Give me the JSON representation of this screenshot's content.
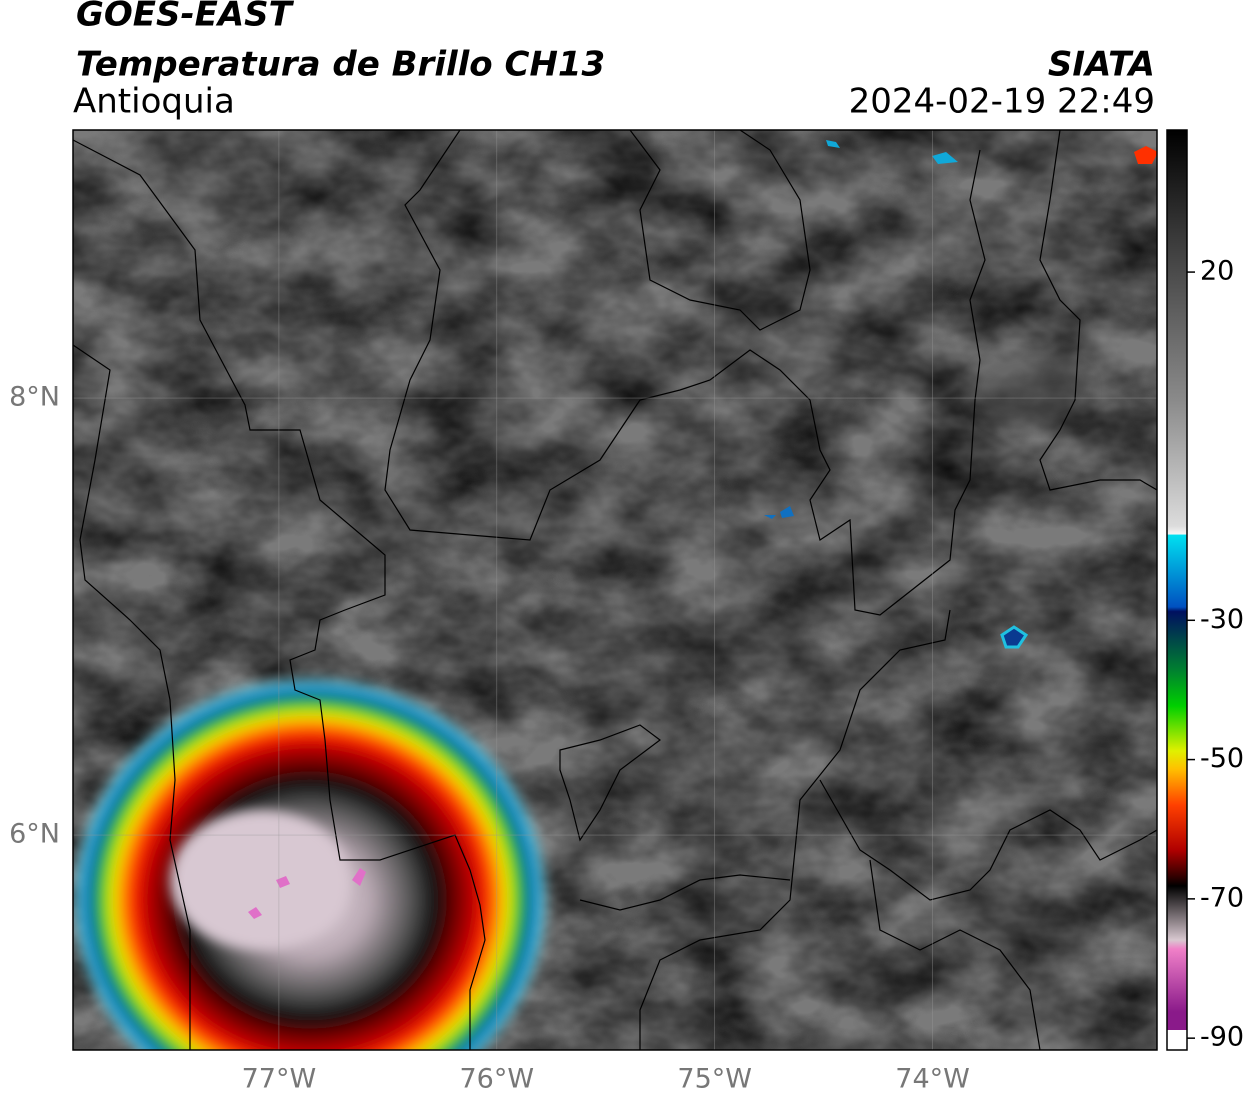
{
  "header": {
    "satellite": "GOES-EAST",
    "product": "Temperatura de Brillo CH13",
    "region": "Antioquia",
    "agency": "SIATA",
    "datetime": "2024-02-19 22:49"
  },
  "map": {
    "lon_range": [
      -77.945,
      -72.97
    ],
    "lat_range": [
      5.016,
      9.227
    ],
    "lon_ticks": [
      {
        "value": -77,
        "label": "77°W"
      },
      {
        "value": -76,
        "label": "76°W"
      },
      {
        "value": -75,
        "label": "75°W"
      },
      {
        "value": -74,
        "label": "74°W"
      }
    ],
    "lat_ticks": [
      {
        "value": 8,
        "label": "8°N"
      },
      {
        "value": 6,
        "label": "6°N"
      }
    ]
  },
  "colorbar": {
    "range": [
      40.4,
      -91.7
    ],
    "ticks": [
      20,
      -30,
      -50,
      -70,
      -90
    ]
  }
}
